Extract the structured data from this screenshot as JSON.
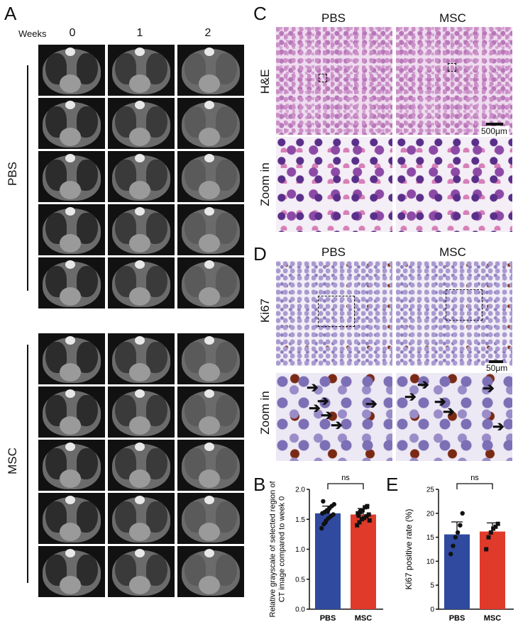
{
  "panelA": {
    "letter": "A",
    "weeks_label": "Weeks",
    "week_headers": [
      "0",
      "1",
      "2"
    ],
    "group1_label": "PBS",
    "group2_label": "MSC"
  },
  "panelC": {
    "letter": "C",
    "col1": "PBS",
    "col2": "MSC",
    "row1_label": "H&E",
    "row2_label": "Zoom in",
    "scale_bar": "500μm"
  },
  "panelD": {
    "letter": "D",
    "col1": "PBS",
    "col2": "MSC",
    "row1_label": "Ki67",
    "row2_label": "Zoom in",
    "scale_bar": "50μm"
  },
  "chart_data": [
    {
      "panel": "B",
      "type": "bar",
      "categories": [
        "PBS",
        "MSC"
      ],
      "values": [
        1.6,
        1.58
      ],
      "errors": [
        0.12,
        0.1
      ],
      "colors": [
        "#2f4a9e",
        "#e03a2b"
      ],
      "points": [
        [
          1.35,
          1.42,
          1.48,
          1.52,
          1.55,
          1.58,
          1.6,
          1.62,
          1.65,
          1.68,
          1.72,
          1.75,
          1.8,
          1.45,
          1.63
        ],
        [
          1.4,
          1.45,
          1.5,
          1.52,
          1.55,
          1.58,
          1.6,
          1.62,
          1.65,
          1.7,
          1.72,
          1.48,
          1.56,
          1.64
        ]
      ],
      "ylabel": "Relative grayscale  of selected region of CT image compared to week 0",
      "ylim": [
        0,
        2.0
      ],
      "yticks": [
        "0.0",
        "0.5",
        "1.0",
        "1.5",
        "2.0"
      ],
      "annotation": "ns"
    },
    {
      "panel": "E",
      "type": "bar",
      "categories": [
        "PBS",
        "MSC"
      ],
      "values": [
        15.6,
        16.2
      ],
      "errors": [
        2.6,
        1.8
      ],
      "colors": [
        "#2f4a9e",
        "#e03a2b"
      ],
      "points": [
        [
          11.5,
          13.2,
          15.0,
          16.0,
          17.5,
          20.0
        ],
        [
          12.5,
          15.0,
          16.0,
          16.8,
          17.2,
          17.8
        ]
      ],
      "ylabel": "Ki67 positive rate  (%)",
      "ylim": [
        0,
        25
      ],
      "yticks": [
        "0",
        "5",
        "10",
        "15",
        "20",
        "25"
      ],
      "annotation": "ns"
    }
  ],
  "panelB_letter": "B",
  "panelE_letter": "E"
}
